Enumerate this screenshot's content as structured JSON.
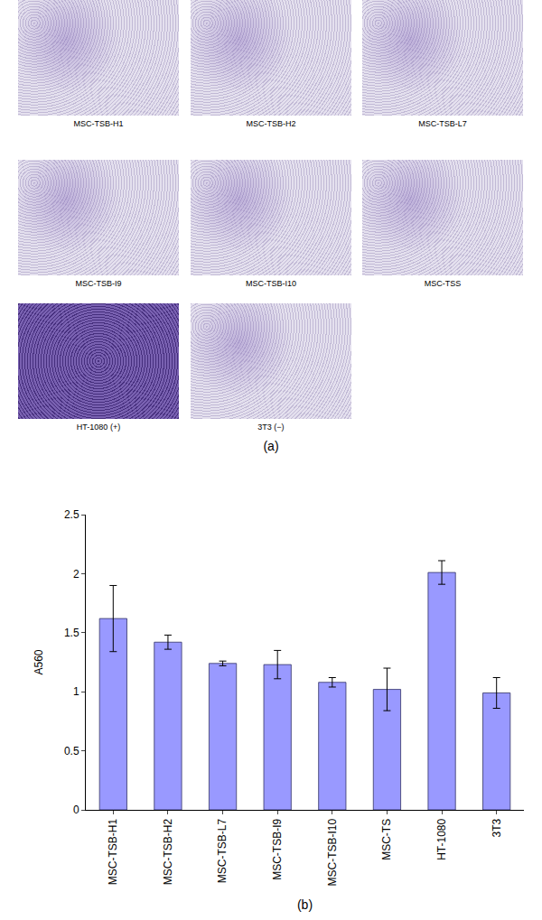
{
  "panel_a": {
    "label": "(a)",
    "images": [
      "MSC-TSB-H1",
      "MSC-TSB-H2",
      "MSC-TSB-L7",
      "MSC-TSB-I9",
      "MSC-TSB-I10",
      "MSC-TSS",
      "HT-1080 (+)",
      "3T3 (−)"
    ]
  },
  "chart_data": {
    "type": "bar",
    "x_label": "(b)",
    "y_label": "A560",
    "categories": [
      "MSC-TSB-H1",
      "MSC-TSB-H2",
      "MSC-TSB-L7",
      "MSC-TSB-I9",
      "MSC-TSB-I10",
      "MSC-TS",
      "HT-1080",
      "3T3"
    ],
    "values": [
      1.62,
      1.42,
      1.24,
      1.23,
      1.08,
      1.02,
      2.01,
      0.99
    ],
    "errors": [
      0.28,
      0.06,
      0.02,
      0.12,
      0.04,
      0.18,
      0.1,
      0.13
    ],
    "color": "#9999ff",
    "ylim": [
      0,
      2.5
    ],
    "yticks": [
      0,
      0.5,
      1,
      1.5,
      2,
      2.5
    ],
    "grid": false
  }
}
